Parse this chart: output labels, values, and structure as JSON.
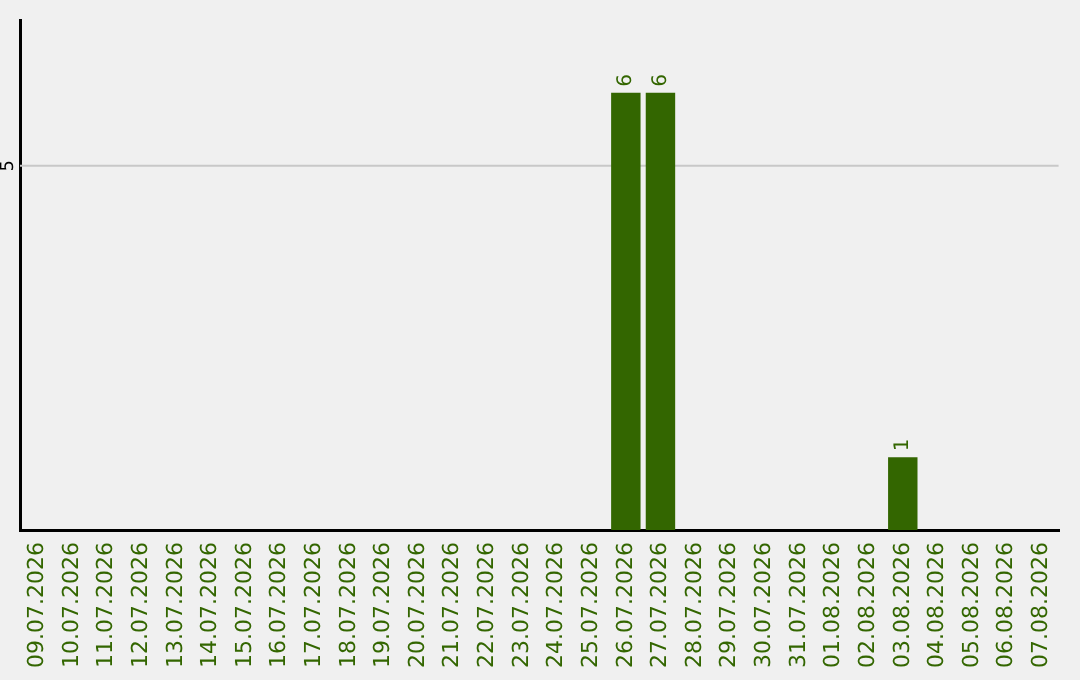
{
  "chart_data": {
    "type": "bar",
    "categories": [
      "09.07.2026",
      "10.07.2026",
      "11.07.2026",
      "12.07.2026",
      "13.07.2026",
      "14.07.2026",
      "15.07.2026",
      "16.07.2026",
      "17.07.2026",
      "18.07.2026",
      "19.07.2026",
      "20.07.2026",
      "21.07.2026",
      "22.07.2026",
      "23.07.2026",
      "24.07.2026",
      "25.07.2026",
      "26.07.2026",
      "27.07.2026",
      "28.07.2026",
      "29.07.2026",
      "30.07.2026",
      "31.07.2026",
      "01.08.2026",
      "02.08.2026",
      "03.08.2026",
      "04.08.2026",
      "05.08.2026",
      "06.08.2026",
      "07.08.2026"
    ],
    "values": [
      null,
      null,
      null,
      null,
      null,
      null,
      null,
      null,
      null,
      null,
      null,
      null,
      null,
      null,
      null,
      null,
      null,
      6,
      6,
      null,
      null,
      null,
      null,
      null,
      null,
      1,
      null,
      null,
      null,
      null
    ],
    "value_labels": [
      null,
      null,
      null,
      null,
      null,
      null,
      null,
      null,
      null,
      null,
      null,
      null,
      null,
      null,
      null,
      null,
      null,
      "6",
      "6",
      null,
      null,
      null,
      null,
      null,
      null,
      "1",
      null,
      null,
      null,
      null
    ],
    "color": "#336600",
    "ref_lines": [
      {
        "axis": "y",
        "value": 5,
        "label": "5",
        "color": "#c8c8c8"
      }
    ],
    "legend": false
  }
}
